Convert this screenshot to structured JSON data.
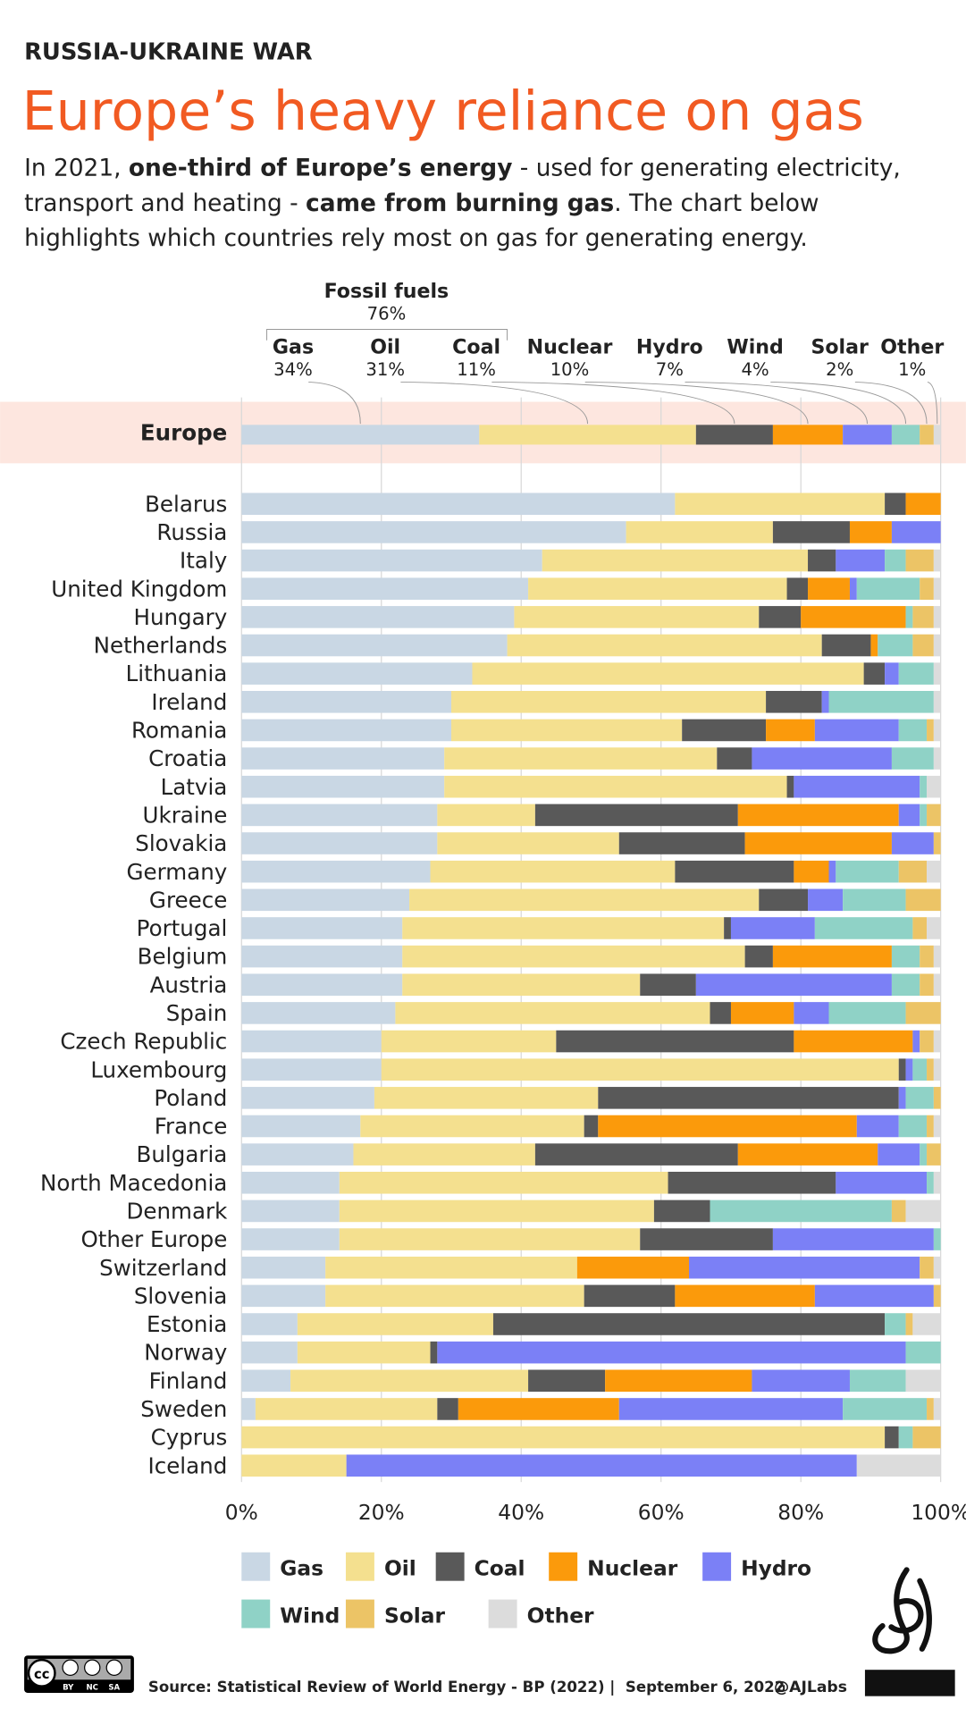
{
  "kicker": "RUSSIA-UKRAINE WAR",
  "title": "Europe’s heavy reliance on gas",
  "subtitle": [
    [
      {
        "text": "In 2021, "
      },
      {
        "text": "one-third of Europe’s energy",
        "bold": true
      },
      {
        "text": " - used for generating electricity,"
      }
    ],
    [
      {
        "text": "transport and heating - "
      },
      {
        "text": "came from burning gas",
        "bold": true
      },
      {
        "text": ". The chart below"
      }
    ],
    [
      {
        "text": "highlights which countries rely most on gas for generating energy."
      }
    ]
  ],
  "chart_data": {
    "type": "bar",
    "orientation": "horizontal",
    "stacked": true,
    "group_annotation": {
      "label": "Fossil fuels",
      "value": 76,
      "value_label": "76%"
    },
    "europe": {
      "name": "Europe",
      "values": [
        34,
        31,
        11,
        10,
        7,
        4,
        2,
        1
      ],
      "value_labels": [
        "34%",
        "31%",
        "11%",
        "10%",
        "7%",
        "4%",
        "2%",
        "1%"
      ]
    },
    "categories": [
      "Belarus",
      "Russia",
      "Italy",
      "United Kingdom",
      "Hungary",
      "Netherlands",
      "Lithuania",
      "Ireland",
      "Romania",
      "Croatia",
      "Latvia",
      "Ukraine",
      "Slovakia",
      "Germany",
      "Greece",
      "Portugal",
      "Belgium",
      "Austria",
      "Spain",
      "Czech Republic",
      "Luxembourg",
      "Poland",
      "France",
      "Bulgaria",
      "North Macedonia",
      "Denmark",
      "Other Europe",
      "Switzerland",
      "Slovenia",
      "Estonia",
      "Norway",
      "Finland",
      "Sweden",
      "Cyprus",
      "Iceland"
    ],
    "series": [
      {
        "name": "Gas",
        "color": "#c9d7e4",
        "values": [
          62,
          55,
          43,
          41,
          39,
          38,
          33,
          30,
          30,
          29,
          29,
          28,
          28,
          27,
          24,
          23,
          23,
          23,
          22,
          20,
          20,
          19,
          17,
          16,
          14,
          14,
          14,
          12,
          12,
          8,
          8,
          7,
          2,
          0,
          0
        ]
      },
      {
        "name": "Oil",
        "color": "#f4e08f",
        "values": [
          30,
          21,
          38,
          37,
          35,
          45,
          56,
          45,
          33,
          39,
          49,
          14,
          26,
          35,
          50,
          46,
          49,
          34,
          45,
          25,
          74,
          32,
          32,
          26,
          47,
          45,
          43,
          36,
          37,
          28,
          19,
          34,
          26,
          92,
          15
        ]
      },
      {
        "name": "Coal",
        "color": "#595959",
        "values": [
          3,
          11,
          4,
          3,
          6,
          7,
          3,
          8,
          12,
          5,
          1,
          29,
          18,
          17,
          7,
          1,
          4,
          8,
          3,
          34,
          1,
          43,
          2,
          29,
          24,
          8,
          19,
          0,
          13,
          56,
          1,
          11,
          3,
          2,
          0
        ]
      },
      {
        "name": "Nuclear",
        "color": "#fb9a0b",
        "values": [
          5,
          6,
          0,
          6,
          15,
          1,
          0,
          0,
          7,
          0,
          0,
          23,
          21,
          5,
          0,
          0,
          17,
          0,
          9,
          17,
          0,
          0,
          37,
          20,
          0,
          0,
          0,
          16,
          20,
          0,
          0,
          21,
          23,
          0,
          0
        ]
      },
      {
        "name": "Hydro",
        "color": "#7b80f6",
        "values": [
          0,
          7,
          7,
          1,
          0,
          0,
          2,
          1,
          12,
          20,
          18,
          3,
          6,
          1,
          5,
          12,
          0,
          28,
          5,
          1,
          1,
          1,
          6,
          6,
          13,
          0,
          23,
          33,
          17,
          0,
          67,
          14,
          32,
          0,
          73
        ]
      },
      {
        "name": "Wind",
        "color": "#8fd2c6",
        "values": [
          0,
          0,
          3,
          9,
          1,
          5,
          5,
          15,
          4,
          6,
          1,
          1,
          0,
          9,
          9,
          14,
          4,
          4,
          11,
          0,
          2,
          4,
          4,
          1,
          1,
          26,
          1,
          0,
          0,
          3,
          5,
          8,
          12,
          2,
          0
        ]
      },
      {
        "name": "Solar",
        "color": "#ecc466",
        "values": [
          0,
          0,
          4,
          2,
          3,
          3,
          0,
          0,
          1,
          0,
          0,
          2,
          1,
          4,
          5,
          2,
          2,
          2,
          5,
          2,
          1,
          1,
          1,
          2,
          0,
          2,
          0,
          2,
          1,
          1,
          0,
          0,
          1,
          4,
          0
        ]
      },
      {
        "name": "Other",
        "color": "#dcdcdc",
        "values": [
          0,
          0,
          1,
          1,
          1,
          1,
          1,
          1,
          1,
          1,
          2,
          0,
          0,
          2,
          0,
          2,
          1,
          1,
          0,
          1,
          1,
          0,
          1,
          0,
          1,
          5,
          0,
          1,
          0,
          4,
          0,
          5,
          1,
          0,
          12
        ]
      }
    ],
    "xlim": [
      0,
      100
    ],
    "xticks": [
      {
        "value": 0,
        "label": "0%"
      },
      {
        "value": 20,
        "label": "20%"
      },
      {
        "value": 40,
        "label": "40%"
      },
      {
        "value": 60,
        "label": "60%"
      },
      {
        "value": 80,
        "label": "80%"
      },
      {
        "value": 100,
        "label": "100%"
      }
    ],
    "grid": true
  },
  "footer": {
    "license": [
      "BY",
      "NC",
      "SA"
    ],
    "source": "Source: Statistical Review of World Energy - BP (2022) |  September 6, 2022",
    "handle": "@AJLabs",
    "brand": "ALJAZEERA"
  }
}
